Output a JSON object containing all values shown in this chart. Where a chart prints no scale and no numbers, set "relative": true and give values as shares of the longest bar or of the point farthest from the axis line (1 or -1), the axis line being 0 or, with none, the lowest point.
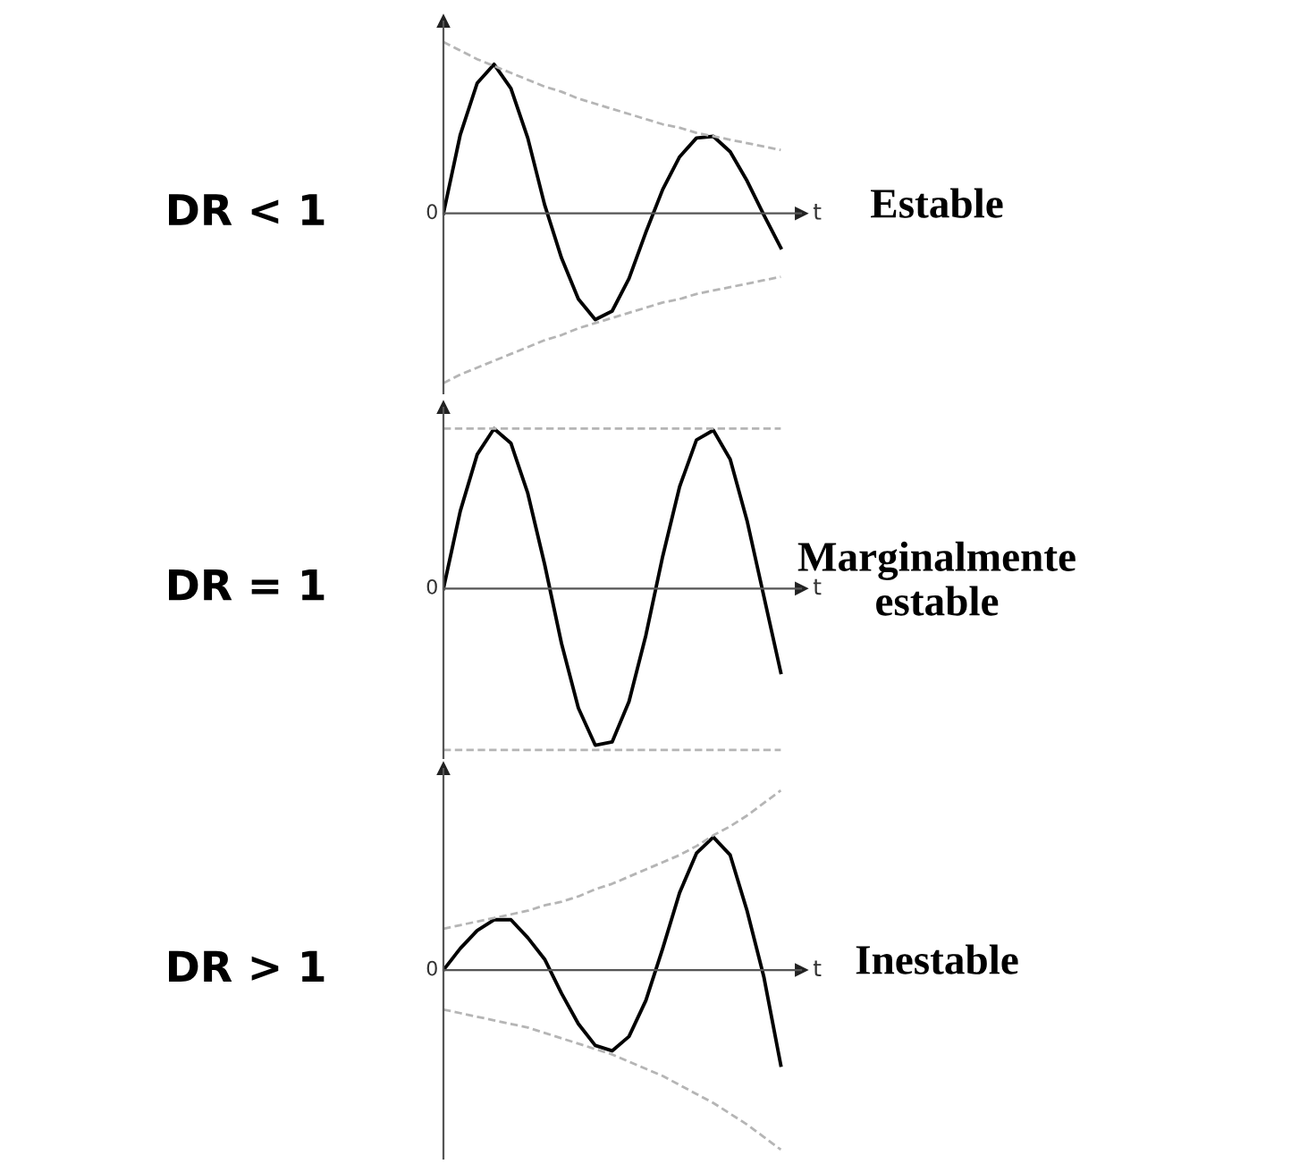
{
  "chart_data": [
    {
      "type": "line",
      "relative": true,
      "ylabel": "DR < 1",
      "xlabel": "t",
      "annotations": [
        "0",
        "Estable"
      ],
      "categories": [
        null,
        null,
        null,
        null,
        null,
        null,
        null,
        null,
        null,
        null,
        null,
        null,
        null,
        null,
        null,
        null,
        null,
        null,
        null,
        null,
        null
      ],
      "series": [
        {
          "color": "#000000",
          "line_style": "solid",
          "values": [
            0,
            0.46,
            0.76,
            0.87,
            0.73,
            0.44,
            0.05,
            -0.26,
            -0.5,
            -0.62,
            -0.57,
            -0.38,
            -0.11,
            0.14,
            0.33,
            0.44,
            0.45,
            0.36,
            0.19,
            -0.01,
            -0.2
          ]
        },
        {
          "color": "#b5b5b5",
          "line_style": "dashed",
          "values": [
            1.0,
            0.95,
            0.9,
            0.86,
            0.82,
            0.78,
            0.74,
            0.71,
            0.67,
            0.64,
            0.61,
            0.58,
            0.55,
            0.52,
            0.5,
            0.47,
            0.45,
            0.43,
            0.41,
            0.39,
            0.37
          ]
        },
        {
          "color": "#b5b5b5",
          "line_style": "dashed",
          "values": [
            -0.99,
            -0.94,
            -0.9,
            -0.86,
            -0.82,
            -0.78,
            -0.74,
            -0.71,
            -0.67,
            -0.64,
            -0.61,
            -0.58,
            -0.55,
            -0.52,
            -0.5,
            -0.47,
            -0.45,
            -0.43,
            -0.41,
            -0.39,
            -0.37
          ]
        }
      ]
    },
    {
      "type": "line",
      "relative": true,
      "ylabel": "DR = 1",
      "xlabel": "t",
      "annotations": [
        "0",
        "Marginalmente\nestable"
      ],
      "categories": [
        null,
        null,
        null,
        null,
        null,
        null,
        null,
        null,
        null,
        null,
        null,
        null,
        null,
        null,
        null,
        null,
        null,
        null,
        null,
        null,
        null
      ],
      "series": [
        {
          "color": "#000000",
          "line_style": "solid",
          "values": [
            0,
            0.48,
            0.83,
            0.99,
            0.9,
            0.59,
            0.15,
            -0.34,
            -0.74,
            -0.97,
            -0.95,
            -0.7,
            -0.29,
            0.2,
            0.63,
            0.92,
            0.98,
            0.8,
            0.42,
            -0.05,
            -0.52
          ]
        },
        {
          "color": "#b5b5b5",
          "line_style": "dashed",
          "values": [
            0.99,
            0.99,
            0.99,
            0.99,
            0.99,
            0.99,
            0.99,
            0.99,
            0.99,
            0.99,
            0.99,
            0.99,
            0.99,
            0.99,
            0.99,
            0.99,
            0.99,
            0.99,
            0.99,
            0.99,
            0.99
          ]
        },
        {
          "color": "#b5b5b5",
          "line_style": "dashed",
          "values": [
            -1,
            -1,
            -1,
            -1,
            -1,
            -1,
            -1,
            -1,
            -1,
            -1,
            -1,
            -1,
            -1,
            -1,
            -1,
            -1,
            -1,
            -1,
            -1,
            -1,
            -1
          ]
        }
      ]
    },
    {
      "type": "line",
      "relative": true,
      "ylabel": "DR > 1",
      "xlabel": "t",
      "annotations": [
        "0",
        "Inestable"
      ],
      "categories": [
        null,
        null,
        null,
        null,
        null,
        null,
        null,
        null,
        null,
        null,
        null,
        null,
        null,
        null,
        null,
        null,
        null,
        null,
        null,
        null,
        null
      ],
      "series": [
        {
          "color": "#000000",
          "line_style": "solid",
          "values": [
            0,
            0.12,
            0.22,
            0.28,
            0.28,
            0.18,
            0.06,
            -0.13,
            -0.3,
            -0.42,
            -0.45,
            -0.37,
            -0.17,
            0.12,
            0.43,
            0.65,
            0.74,
            0.64,
            0.33,
            -0.04,
            -0.53
          ]
        },
        {
          "color": "#b5b5b5",
          "line_style": "dashed",
          "values": [
            0.23,
            0.25,
            0.27,
            0.29,
            0.31,
            0.33,
            0.36,
            0.38,
            0.41,
            0.45,
            0.48,
            0.52,
            0.56,
            0.6,
            0.64,
            0.69,
            0.75,
            0.8,
            0.86,
            0.93,
            1.0
          ]
        },
        {
          "color": "#b5b5b5",
          "line_style": "dashed",
          "values": [
            -0.22,
            -0.24,
            -0.26,
            -0.28,
            -0.3,
            -0.32,
            -0.35,
            -0.38,
            -0.41,
            -0.44,
            -0.47,
            -0.51,
            -0.55,
            -0.59,
            -0.64,
            -0.69,
            -0.74,
            -0.8,
            -0.86,
            -0.93,
            -1.0
          ]
        }
      ]
    }
  ]
}
